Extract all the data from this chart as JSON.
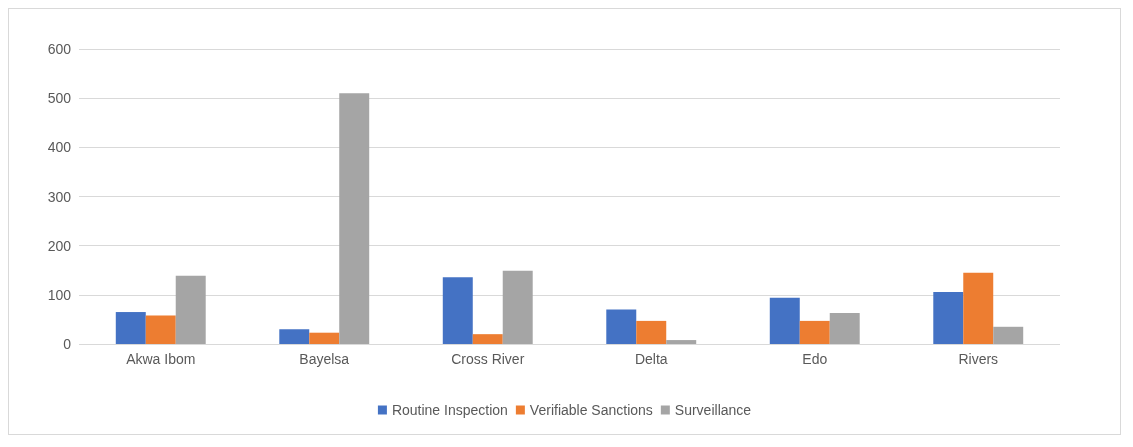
{
  "chart_data": {
    "type": "bar",
    "categories": [
      "Akwa Ibom",
      "Bayelsa",
      "Cross River",
      "Delta",
      "Edo",
      "Rivers"
    ],
    "series": [
      {
        "name": "Routine Inspection",
        "color": "#4472c4",
        "values": [
          65,
          30,
          136,
          70,
          94,
          106
        ]
      },
      {
        "name": "Verifiable Sanctions",
        "color": "#ed7d31",
        "values": [
          58,
          23,
          20,
          47,
          47,
          145
        ]
      },
      {
        "name": "Surveillance",
        "color": "#a5a5a5",
        "values": [
          139,
          510,
          149,
          8,
          63,
          35
        ]
      }
    ],
    "ylim": [
      0,
      600
    ],
    "yticks": [
      0,
      100,
      200,
      300,
      400,
      500,
      600
    ],
    "grid": "y",
    "legend": "bottom"
  }
}
